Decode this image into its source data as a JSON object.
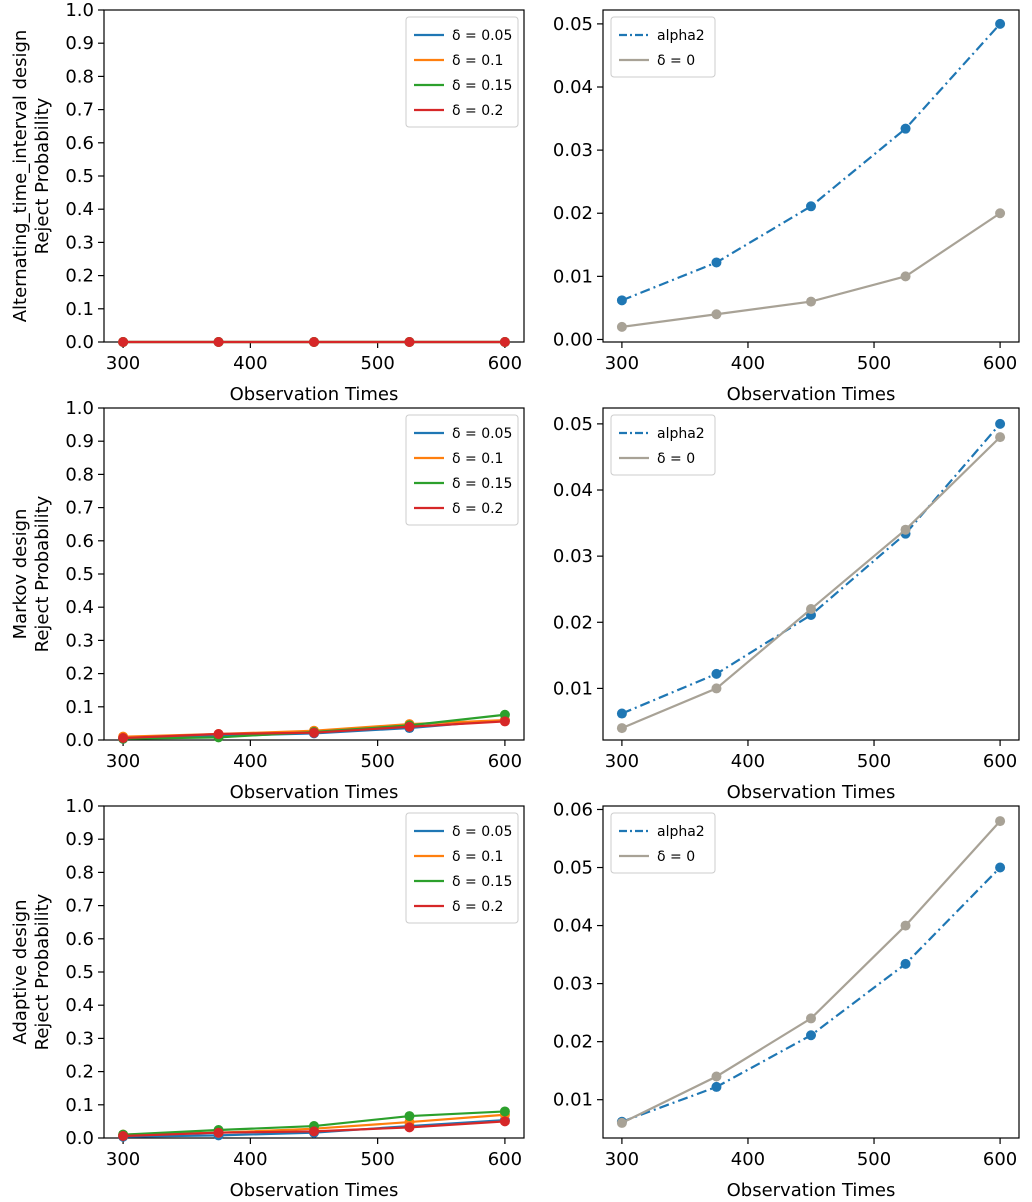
{
  "colors": {
    "d005": "#1f77b4",
    "d01": "#ff7f0e",
    "d015": "#2ca02c",
    "d02": "#d62728",
    "alpha2": "#1f77b4",
    "delta0": "#a8a296"
  },
  "chart_data": [
    {
      "id": "alt-reject",
      "type": "line",
      "ylabel_line1": "Alternating_time_interval design",
      "ylabel_line2": "Reject Probability",
      "xlabel": "Observation Times",
      "x": [
        300,
        375,
        450,
        525,
        600
      ],
      "xticks": [
        300,
        400,
        500,
        600
      ],
      "xlim": [
        285,
        615
      ],
      "ylim": [
        0,
        1.0
      ],
      "yticks": [
        0,
        0.1,
        0.2,
        0.3,
        0.4,
        0.5,
        0.6,
        0.7,
        0.8,
        0.9,
        1.0
      ],
      "ytick_decimals": 1,
      "legend_position": "upper right",
      "series": [
        {
          "key": "d005",
          "name": "δ = 0.05",
          "label_base": "δ = ",
          "label_value": "0.05",
          "style": "solid",
          "values": [
            0,
            0,
            0,
            0,
            0
          ]
        },
        {
          "key": "d01",
          "name": "δ = 0.1",
          "label_base": "δ = ",
          "label_value": "0.1",
          "style": "solid",
          "values": [
            0,
            0,
            0,
            0,
            0
          ]
        },
        {
          "key": "d015",
          "name": "δ = 0.15",
          "label_base": "δ = ",
          "label_value": "0.15",
          "style": "solid",
          "values": [
            0,
            0,
            0,
            0,
            0
          ]
        },
        {
          "key": "d02",
          "name": "δ = 0.2",
          "label_base": "δ = ",
          "label_value": "0.2",
          "style": "solid",
          "values": [
            0,
            0,
            0,
            0,
            0
          ]
        }
      ]
    },
    {
      "id": "alt-alpha",
      "type": "line",
      "xlabel": "Observation Times",
      "x": [
        300,
        375,
        450,
        525,
        600
      ],
      "xticks": [
        300,
        400,
        500,
        600
      ],
      "xlim": [
        285,
        615
      ],
      "ylim": [
        -0.0004,
        0.0522
      ],
      "yticks": [
        0.0,
        0.01,
        0.02,
        0.03,
        0.04,
        0.05
      ],
      "ytick_decimals": 2,
      "legend_position": "upper left",
      "series": [
        {
          "key": "alpha2",
          "name": "alpha2",
          "label_base": "alpha2",
          "label_value": "",
          "style": "dashdot",
          "values": [
            0.0062,
            0.0122,
            0.0211,
            0.0334,
            0.05
          ]
        },
        {
          "key": "delta0",
          "name": "δ = 0",
          "label_base": "δ = ",
          "label_value": "0",
          "style": "solid",
          "values": [
            0.002,
            0.004,
            0.006,
            0.01,
            0.02
          ]
        }
      ]
    },
    {
      "id": "markov-reject",
      "type": "line",
      "ylabel_line1": "Markov design",
      "ylabel_line2": "Reject Probability",
      "xlabel": "Observation Times",
      "x": [
        300,
        375,
        450,
        525,
        600
      ],
      "xticks": [
        300,
        400,
        500,
        600
      ],
      "xlim": [
        285,
        615
      ],
      "ylim": [
        0,
        1.0
      ],
      "yticks": [
        0,
        0.1,
        0.2,
        0.3,
        0.4,
        0.5,
        0.6,
        0.7,
        0.8,
        0.9,
        1.0
      ],
      "ytick_decimals": 1,
      "legend_position": "upper right",
      "series": [
        {
          "key": "d005",
          "name": "δ = 0.05",
          "label_base": "δ = ",
          "label_value": "0.05",
          "style": "solid",
          "values": [
            0.004,
            0.012,
            0.02,
            0.036,
            0.06
          ]
        },
        {
          "key": "d01",
          "name": "δ = 0.1",
          "label_base": "δ = ",
          "label_value": "0.1",
          "style": "solid",
          "values": [
            0.01,
            0.018,
            0.028,
            0.048,
            0.06
          ]
        },
        {
          "key": "d015",
          "name": "δ = 0.15",
          "label_base": "δ = ",
          "label_value": "0.15",
          "style": "solid",
          "values": [
            0.004,
            0.008,
            0.024,
            0.044,
            0.076
          ]
        },
        {
          "key": "d02",
          "name": "δ = 0.2",
          "label_base": "δ = ",
          "label_value": "0.2",
          "style": "solid",
          "values": [
            0.006,
            0.018,
            0.022,
            0.04,
            0.056
          ]
        }
      ]
    },
    {
      "id": "markov-alpha",
      "type": "line",
      "xlabel": "Observation Times",
      "x": [
        300,
        375,
        450,
        525,
        600
      ],
      "xticks": [
        300,
        400,
        500,
        600
      ],
      "xlim": [
        285,
        615
      ],
      "ylim": [
        0.0022,
        0.0524
      ],
      "yticks": [
        0.01,
        0.02,
        0.03,
        0.04,
        0.05
      ],
      "ytick_decimals": 2,
      "legend_position": "upper left",
      "series": [
        {
          "key": "alpha2",
          "name": "alpha2",
          "label_base": "alpha2",
          "label_value": "",
          "style": "dashdot",
          "values": [
            0.0062,
            0.0122,
            0.0211,
            0.0334,
            0.05
          ]
        },
        {
          "key": "delta0",
          "name": "δ = 0",
          "label_base": "δ = ",
          "label_value": "0",
          "style": "solid",
          "values": [
            0.004,
            0.01,
            0.022,
            0.034,
            0.048
          ]
        }
      ]
    },
    {
      "id": "adaptive-reject",
      "type": "line",
      "ylabel_line1": "Adaptive design",
      "ylabel_line2": "Reject Probability",
      "xlabel": "Observation Times",
      "x": [
        300,
        375,
        450,
        525,
        600
      ],
      "xticks": [
        300,
        400,
        500,
        600
      ],
      "xlim": [
        285,
        615
      ],
      "ylim": [
        0,
        1.0
      ],
      "yticks": [
        0,
        0.1,
        0.2,
        0.3,
        0.4,
        0.5,
        0.6,
        0.7,
        0.8,
        0.9,
        1.0
      ],
      "ytick_decimals": 1,
      "legend_position": "upper right",
      "series": [
        {
          "key": "d005",
          "name": "δ = 0.05",
          "label_base": "δ = ",
          "label_value": "0.05",
          "style": "solid",
          "values": [
            0.004,
            0.008,
            0.016,
            0.036,
            0.054
          ]
        },
        {
          "key": "d01",
          "name": "δ = 0.1",
          "label_base": "δ = ",
          "label_value": "0.1",
          "style": "solid",
          "values": [
            0.01,
            0.016,
            0.028,
            0.048,
            0.07
          ]
        },
        {
          "key": "d015",
          "name": "δ = 0.15",
          "label_base": "δ = ",
          "label_value": "0.15",
          "style": "solid",
          "values": [
            0.01,
            0.024,
            0.036,
            0.066,
            0.08
          ]
        },
        {
          "key": "d02",
          "name": "δ = 0.2",
          "label_base": "δ = ",
          "label_value": "0.2",
          "style": "solid",
          "values": [
            0.006,
            0.016,
            0.02,
            0.032,
            0.05
          ]
        }
      ]
    },
    {
      "id": "adaptive-alpha",
      "type": "line",
      "xlabel": "Observation Times",
      "x": [
        300,
        375,
        450,
        525,
        600
      ],
      "xticks": [
        300,
        400,
        500,
        600
      ],
      "xlim": [
        285,
        615
      ],
      "ylim": [
        0.0034,
        0.0606
      ],
      "yticks": [
        0.01,
        0.02,
        0.03,
        0.04,
        0.05,
        0.06
      ],
      "ytick_decimals": 2,
      "legend_position": "upper left",
      "series": [
        {
          "key": "alpha2",
          "name": "alpha2",
          "label_base": "alpha2",
          "label_value": "",
          "style": "dashdot",
          "values": [
            0.0062,
            0.0122,
            0.0211,
            0.0334,
            0.05
          ]
        },
        {
          "key": "delta0",
          "name": "δ = 0",
          "label_base": "δ = ",
          "label_value": "0",
          "style": "solid",
          "values": [
            0.006,
            0.014,
            0.024,
            0.04,
            0.058
          ]
        }
      ]
    }
  ]
}
